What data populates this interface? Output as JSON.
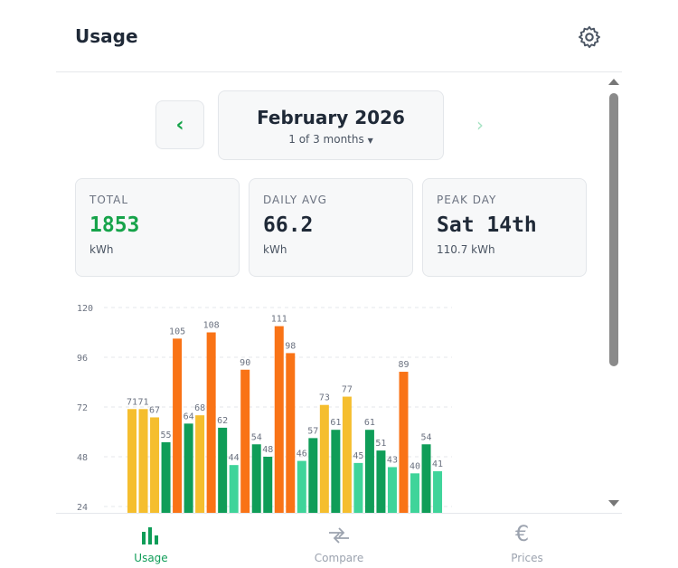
{
  "header": {
    "title": "Usage"
  },
  "nav": {
    "month": "February 2026",
    "subtitle": "1 of 3 months"
  },
  "stats": [
    {
      "label": "TOTAL",
      "value": "1853",
      "unit": "kWh"
    },
    {
      "label": "DAILY AVG",
      "value": "66.2",
      "unit": "kWh"
    },
    {
      "label": "PEAK DAY",
      "value": "Sat 14th",
      "unit": "110.7 kWh"
    }
  ],
  "chart_data": {
    "type": "bar",
    "values": [
      71,
      71,
      67,
      55,
      105,
      64,
      68,
      108,
      62,
      44,
      90,
      54,
      48,
      111,
      98,
      46,
      57,
      73,
      61,
      77,
      45,
      61,
      51,
      43,
      89,
      40,
      54,
      41
    ],
    "colors": [
      "#f5be2e",
      "#f5be2e",
      "#f5be2e",
      "#0f9d58",
      "#f97316",
      "#0f9d58",
      "#f5be2e",
      "#f97316",
      "#0f9d58",
      "#3fd49a",
      "#f97316",
      "#0f9d58",
      "#0f9d58",
      "#f97316",
      "#f97316",
      "#3fd49a",
      "#0f9d58",
      "#f5be2e",
      "#0f9d58",
      "#f5be2e",
      "#3fd49a",
      "#0f9d58",
      "#0f9d58",
      "#3fd49a",
      "#f97316",
      "#3fd49a",
      "#0f9d58",
      "#3fd49a"
    ],
    "ylim": [
      0,
      120
    ],
    "yticks": [
      24,
      48,
      72,
      96,
      120
    ],
    "grid": true
  },
  "tabs": [
    "Usage",
    "Compare",
    "Prices"
  ]
}
